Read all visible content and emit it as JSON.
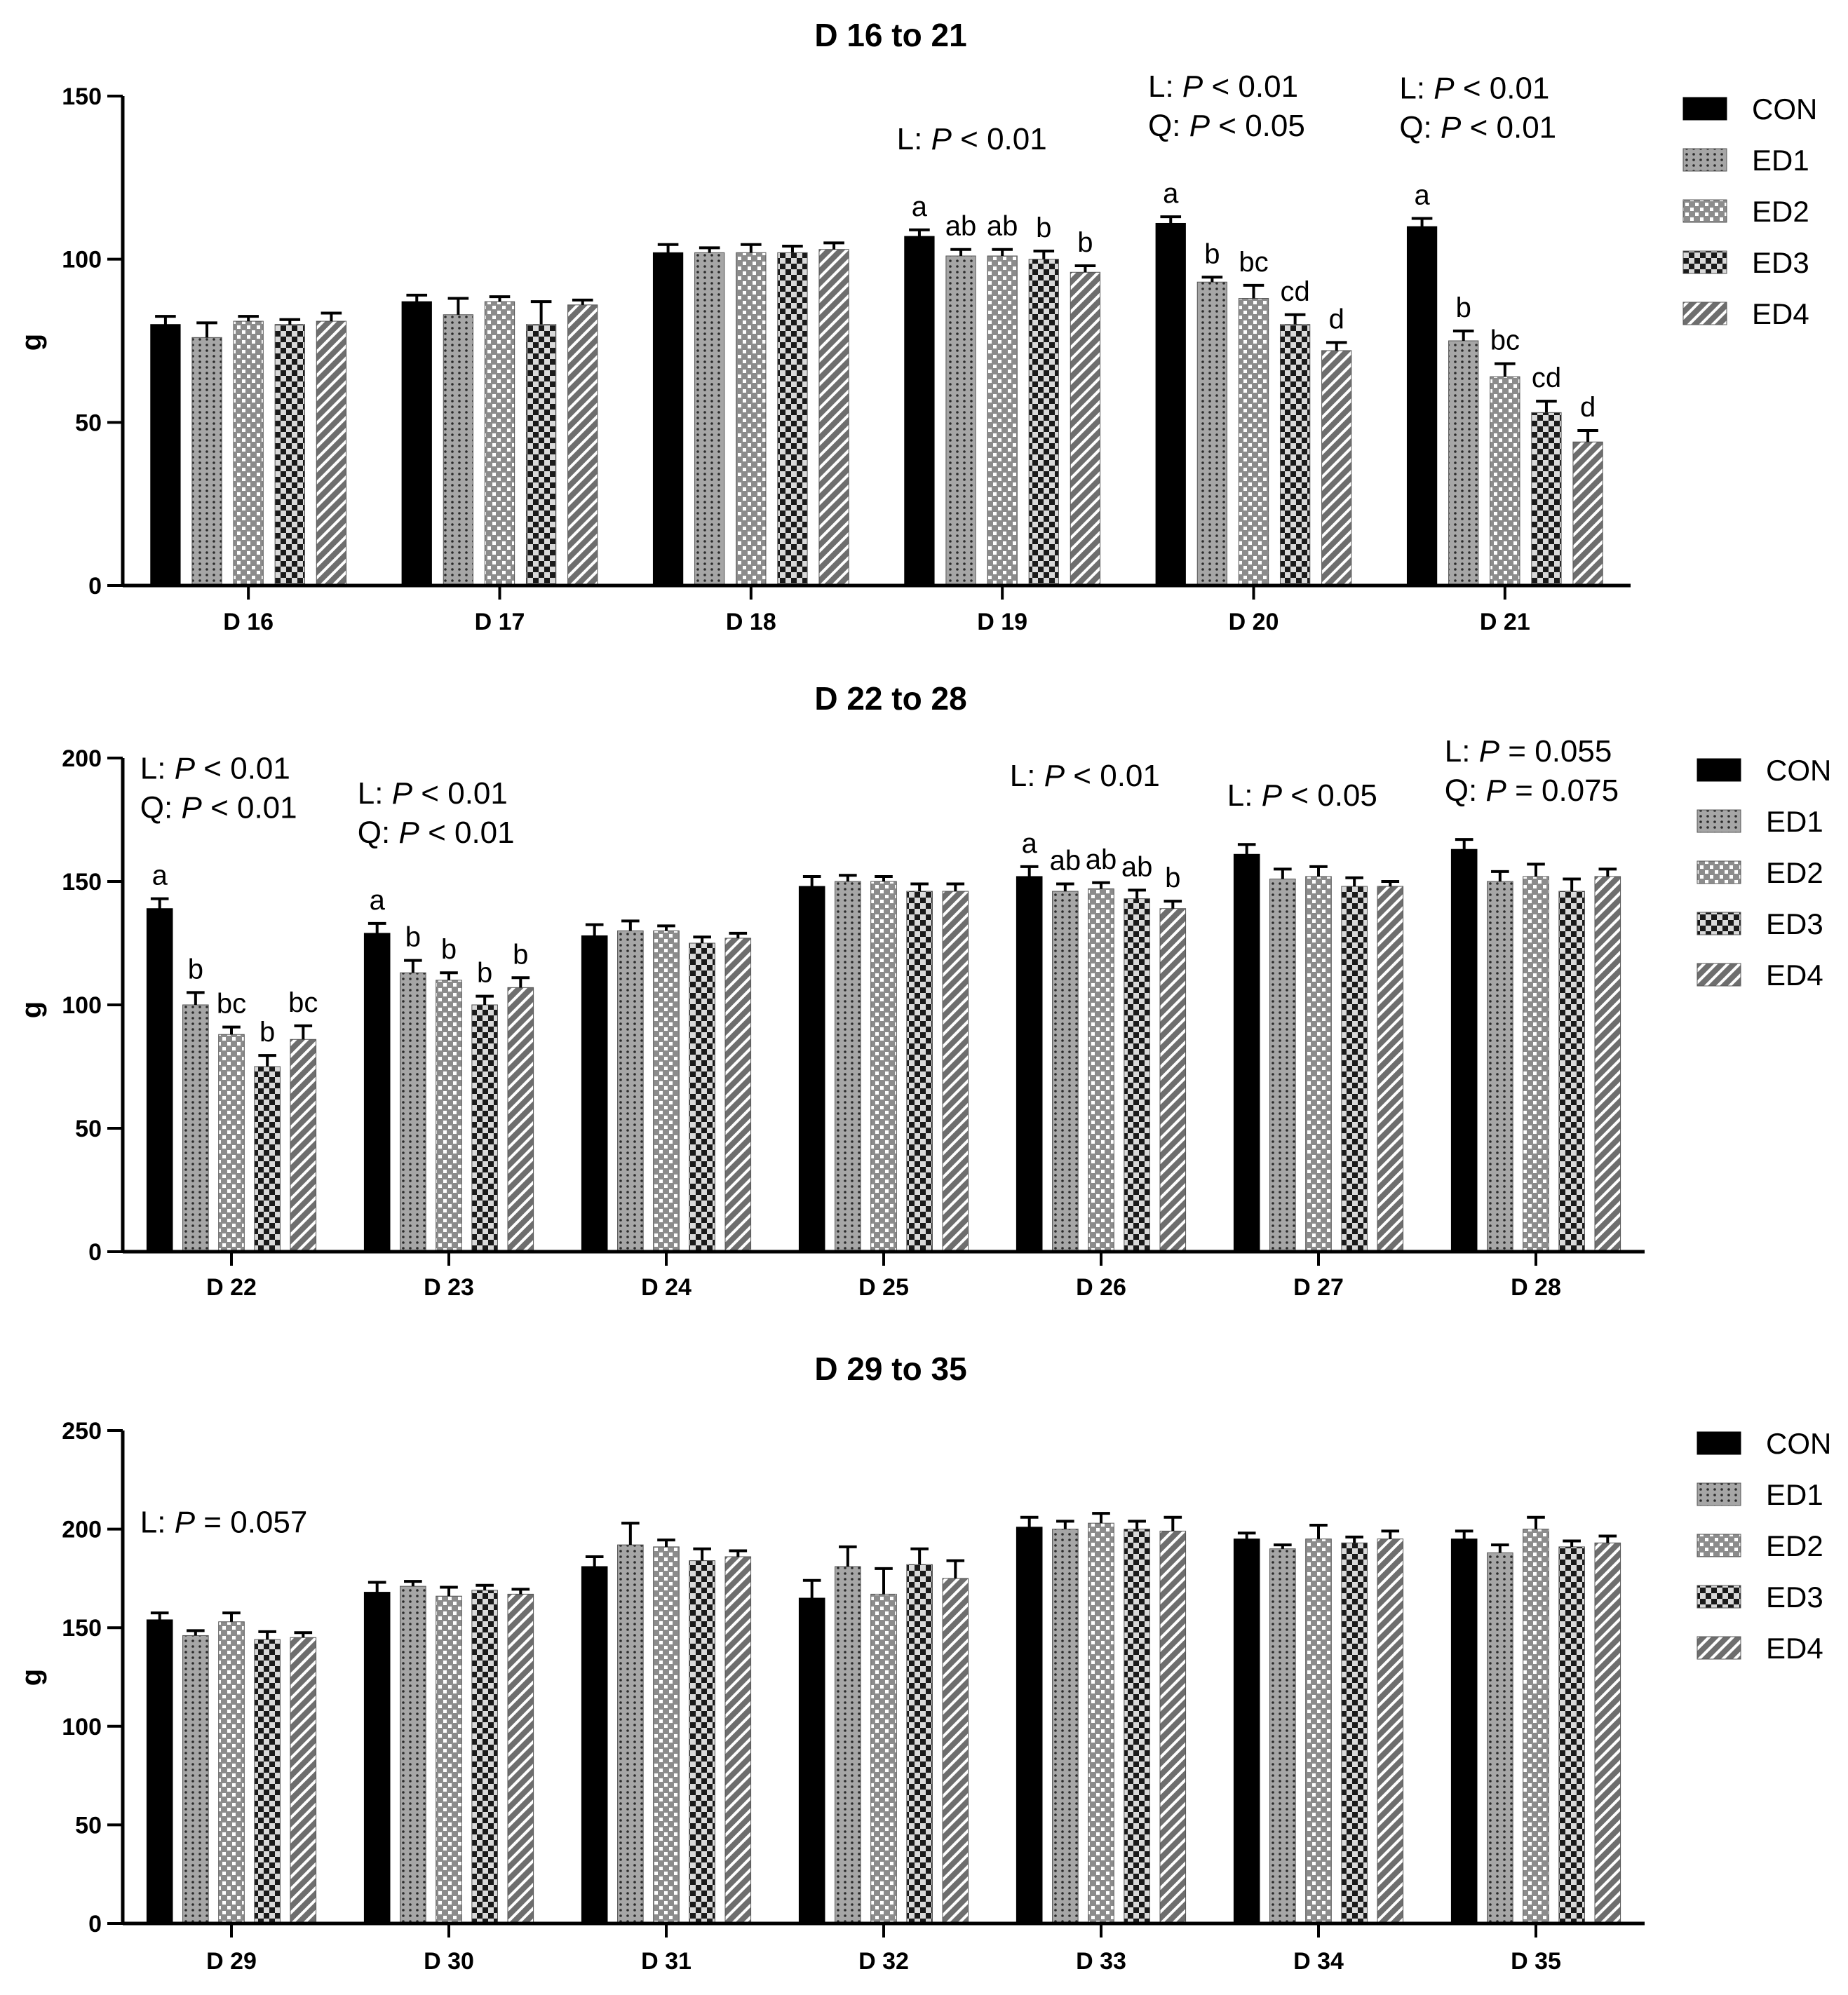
{
  "chart_data": [
    {
      "type": "bar",
      "title": "D 16 to 21",
      "ylabel": "g",
      "ylim": [
        0,
        150
      ],
      "yticks": [
        "0",
        "50",
        "100",
        "150"
      ],
      "categories": [
        "D 16",
        "D 17",
        "D 18",
        "D 19",
        "D 20",
        "D 21"
      ],
      "series": [
        {
          "name": "CON",
          "values": [
            80,
            87,
            102,
            107,
            111,
            110
          ],
          "errors": [
            2.5,
            2,
            2.5,
            2,
            2,
            2.5
          ]
        },
        {
          "name": "ED1",
          "values": [
            76,
            83,
            102,
            101,
            93,
            75
          ],
          "errors": [
            4.5,
            5,
            1.5,
            2,
            1.5,
            3
          ]
        },
        {
          "name": "ED2",
          "values": [
            81,
            87,
            102,
            101,
            88,
            64
          ],
          "errors": [
            1.5,
            1.5,
            2.5,
            2,
            4,
            4
          ]
        },
        {
          "name": "ED3",
          "values": [
            80,
            80,
            102,
            100,
            80,
            53
          ],
          "errors": [
            1.5,
            7,
            2,
            2.5,
            3,
            3.5
          ]
        },
        {
          "name": "ED4",
          "values": [
            81,
            86,
            103,
            96,
            72,
            44
          ],
          "errors": [
            2.5,
            1.5,
            2,
            2,
            2.5,
            3.5
          ]
        }
      ],
      "letters": [
        [
          null,
          null,
          null,
          null,
          null
        ],
        [
          null,
          null,
          null,
          null,
          null
        ],
        [
          null,
          null,
          null,
          null,
          null
        ],
        [
          "a",
          "ab",
          "ab",
          "b",
          "b"
        ],
        [
          "a",
          "b",
          "bc",
          "cd",
          "d"
        ],
        [
          "a",
          "b",
          "bc",
          "cd",
          "d"
        ]
      ],
      "annotations": [
        {
          "category": 3,
          "lines": [
            {
              "label": "L:",
              "p": "P",
              "rel": "< 0.01"
            }
          ]
        },
        {
          "category": 4,
          "lines": [
            {
              "label": "L:",
              "p": "P",
              "rel": "< 0.01"
            },
            {
              "label": "Q:",
              "p": "P",
              "rel": "< 0.05"
            }
          ]
        },
        {
          "category": 5,
          "lines": [
            {
              "label": "L:",
              "p": "P",
              "rel": "< 0.01"
            },
            {
              "label": "Q:",
              "p": "P",
              "rel": "< 0.01"
            }
          ]
        }
      ]
    },
    {
      "type": "bar",
      "title": "D 22 to 28",
      "ylabel": "g",
      "ylim": [
        0,
        200
      ],
      "yticks": [
        "0",
        "50",
        "100",
        "150",
        "200"
      ],
      "categories": [
        "D 22",
        "D 23",
        "D 24",
        "D 25",
        "D 26",
        "D 27",
        "D 28"
      ],
      "series": [
        {
          "name": "CON",
          "values": [
            139,
            129,
            128,
            148,
            152,
            161,
            163
          ],
          "errors": [
            4,
            4,
            4.5,
            4,
            4,
            4,
            4
          ]
        },
        {
          "name": "ED1",
          "values": [
            100,
            113,
            130,
            150,
            146,
            151,
            150
          ],
          "errors": [
            5,
            5,
            4,
            2.5,
            3,
            4,
            4
          ]
        },
        {
          "name": "ED2",
          "values": [
            88,
            110,
            130,
            150,
            147,
            152,
            152
          ],
          "errors": [
            3,
            3,
            2,
            2,
            2.5,
            4,
            5
          ]
        },
        {
          "name": "ED3",
          "values": [
            75,
            100,
            125,
            146,
            143,
            148,
            146
          ],
          "errors": [
            4.5,
            3.5,
            2.5,
            3,
            3.5,
            3.5,
            5
          ]
        },
        {
          "name": "ED4",
          "values": [
            86,
            107,
            127,
            146,
            139,
            148,
            152
          ],
          "errors": [
            5.5,
            4,
            2,
            3,
            3,
            2,
            3
          ]
        }
      ],
      "letters": [
        [
          "a",
          "b",
          "bc",
          "b",
          "bc"
        ],
        [
          "a",
          "b",
          "b",
          "b",
          "b"
        ],
        [
          null,
          null,
          null,
          null,
          null
        ],
        [
          null,
          null,
          null,
          null,
          null
        ],
        [
          "a",
          "ab",
          "ab",
          "ab",
          "b"
        ],
        [
          null,
          null,
          null,
          null,
          null
        ],
        [
          null,
          null,
          null,
          null,
          null
        ]
      ],
      "annotations": [
        {
          "category": 0,
          "lines": [
            {
              "label": "L:",
              "p": "P",
              "rel": "< 0.01"
            },
            {
              "label": "Q:",
              "p": "P",
              "rel": "< 0.01"
            }
          ]
        },
        {
          "category": 1,
          "lines": [
            {
              "label": "L:",
              "p": "P",
              "rel": "< 0.01"
            },
            {
              "label": "Q:",
              "p": "P",
              "rel": "< 0.01"
            }
          ]
        },
        {
          "category": 4,
          "lines": [
            {
              "label": "L:",
              "p": "P",
              "rel": "< 0.01"
            }
          ]
        },
        {
          "category": 5,
          "lines": [
            {
              "label": "L:",
              "p": "P",
              "rel": "< 0.05"
            }
          ]
        },
        {
          "category": 6,
          "lines": [
            {
              "label": "L:",
              "p": "P",
              "rel": "= 0.055"
            },
            {
              "label": "Q:",
              "p": "P",
              "rel": "= 0.075"
            }
          ]
        }
      ]
    },
    {
      "type": "bar",
      "title": "D 29 to 35",
      "ylabel": "g",
      "ylim": [
        0,
        250
      ],
      "yticks": [
        "0",
        "50",
        "100",
        "150",
        "200",
        "250"
      ],
      "categories": [
        "D 29",
        "D 30",
        "D 31",
        "D 32",
        "D 33",
        "D 34",
        "D 35"
      ],
      "series": [
        {
          "name": "CON",
          "values": [
            154,
            168,
            181,
            165,
            201,
            195,
            195
          ],
          "errors": [
            3.5,
            5,
            5,
            9,
            5,
            3,
            4
          ]
        },
        {
          "name": "ED1",
          "values": [
            146,
            171,
            192,
            181,
            200,
            190,
            188
          ],
          "errors": [
            2.5,
            2.5,
            11,
            10,
            4,
            2,
            4
          ]
        },
        {
          "name": "ED2",
          "values": [
            153,
            166,
            191,
            167,
            203,
            195,
            200
          ],
          "errors": [
            4.5,
            4.5,
            3.5,
            13,
            5,
            7,
            6
          ]
        },
        {
          "name": "ED3",
          "values": [
            144,
            169,
            184,
            182,
            200,
            193,
            191
          ],
          "errors": [
            4,
            2.5,
            6,
            8,
            4,
            3,
            3
          ]
        },
        {
          "name": "ED4",
          "values": [
            145,
            167,
            186,
            175,
            199,
            195,
            193
          ],
          "errors": [
            2.5,
            2.5,
            3,
            9,
            7,
            4,
            3.5
          ]
        }
      ],
      "letters": [],
      "annotations": [
        {
          "category": 0,
          "lines": [
            {
              "label": "L:",
              "p": "P",
              "rel": "= 0.057"
            }
          ]
        }
      ]
    }
  ],
  "legend": {
    "items": [
      "CON",
      "ED1",
      "ED2",
      "ED3",
      "ED4"
    ],
    "colors": [
      "#000000",
      "#a6a6a6",
      "#8c8c8c",
      "#d9d9d9",
      "#6e6e6e"
    ]
  }
}
